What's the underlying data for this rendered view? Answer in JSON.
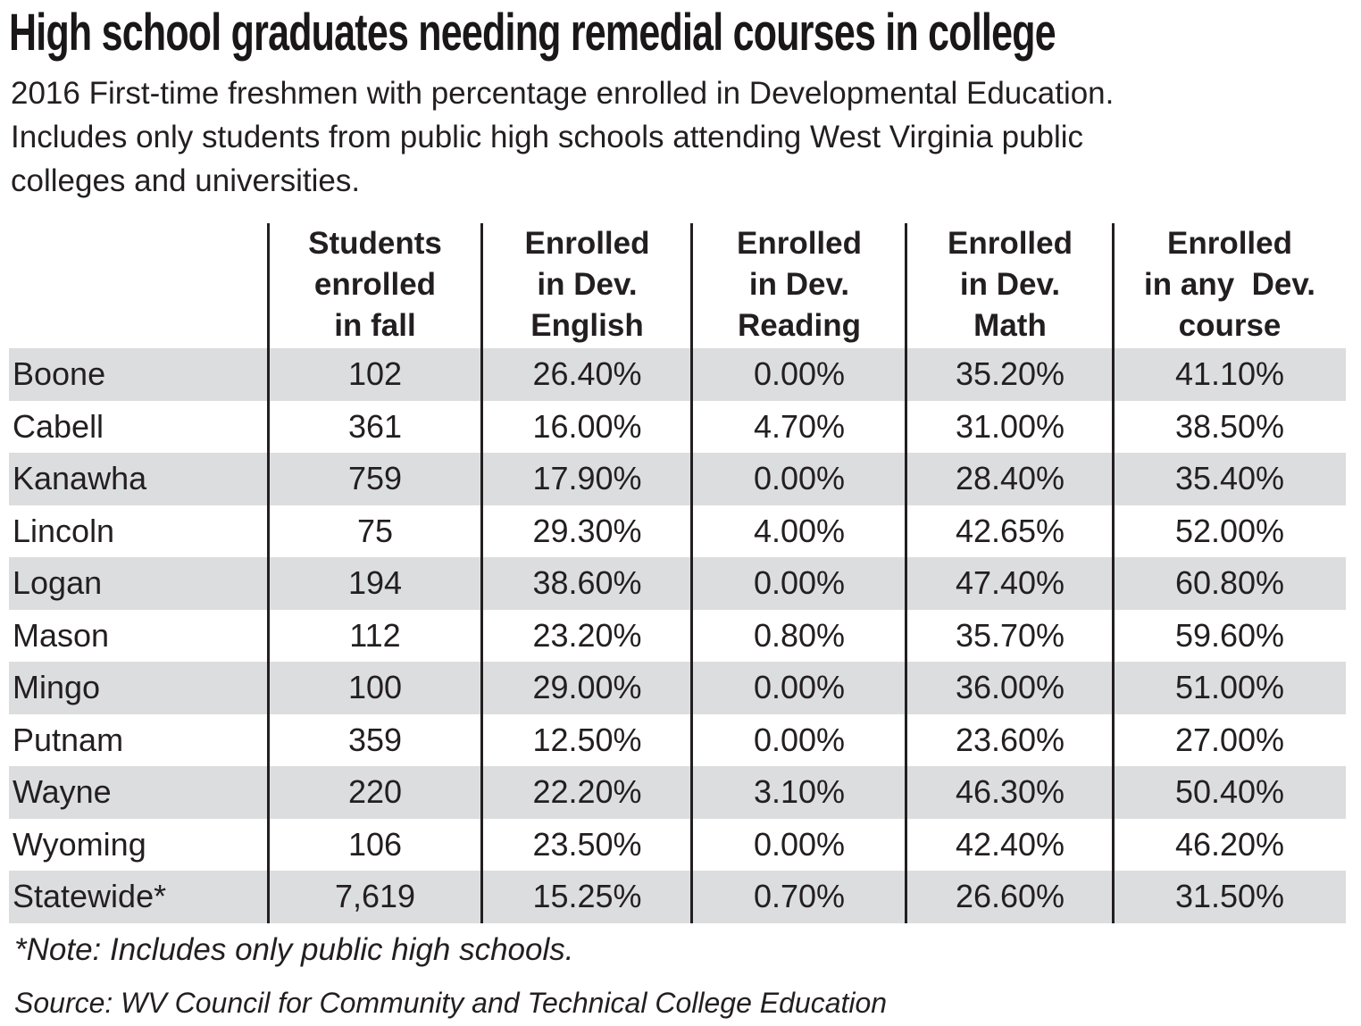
{
  "title": "High school graduates needing remedial courses in college",
  "subtitle": {
    "lines": [
      "2016 First-time freshmen with percentage enrolled in Developmental Education.",
      "Includes only students from public high schools attending West Virginia public",
      "colleges and universities."
    ]
  },
  "table": {
    "headers": [
      {
        "lines": [
          "",
          "",
          ""
        ]
      },
      {
        "lines": [
          "Students",
          "enrolled",
          "in fall"
        ]
      },
      {
        "lines": [
          "Enrolled",
          "in Dev.",
          "English"
        ]
      },
      {
        "lines": [
          "Enrolled",
          "in Dev.",
          "Reading"
        ]
      },
      {
        "lines": [
          "Enrolled",
          "in Dev.",
          "Math"
        ]
      },
      {
        "lines": [
          "Enrolled",
          "in any  Dev.",
          "course"
        ]
      }
    ],
    "rows": [
      {
        "county": "Boone",
        "students": "102",
        "english": "26.40%",
        "reading": "0.00%",
        "math": "35.20%",
        "any": "41.10%"
      },
      {
        "county": "Cabell",
        "students": "361",
        "english": "16.00%",
        "reading": "4.70%",
        "math": "31.00%",
        "any": "38.50%"
      },
      {
        "county": "Kanawha",
        "students": "759",
        "english": "17.90%",
        "reading": "0.00%",
        "math": "28.40%",
        "any": "35.40%"
      },
      {
        "county": "Lincoln",
        "students": "75",
        "english": "29.30%",
        "reading": "4.00%",
        "math": "42.65%",
        "any": "52.00%"
      },
      {
        "county": "Logan",
        "students": "194",
        "english": "38.60%",
        "reading": "0.00%",
        "math": "47.40%",
        "any": "60.80%"
      },
      {
        "county": "Mason",
        "students": "112",
        "english": "23.20%",
        "reading": "0.80%",
        "math": "35.70%",
        "any": "59.60%"
      },
      {
        "county": "Mingo",
        "students": "100",
        "english": "29.00%",
        "reading": "0.00%",
        "math": "36.00%",
        "any": "51.00%"
      },
      {
        "county": "Putnam",
        "students": "359",
        "english": "12.50%",
        "reading": "0.00%",
        "math": "23.60%",
        "any": "27.00%"
      },
      {
        "county": "Wayne",
        "students": "220",
        "english": "22.20%",
        "reading": "3.10%",
        "math": "46.30%",
        "any": "50.40%"
      },
      {
        "county": "Wyoming",
        "students": "106",
        "english": "23.50%",
        "reading": "0.00%",
        "math": "42.40%",
        "any": "46.20%"
      },
      {
        "county": "Statewide*",
        "students": "7,619",
        "english": "15.25%",
        "reading": "0.70%",
        "math": "26.60%",
        "any": "31.50%"
      }
    ]
  },
  "note": "*Note: Includes only public high schools.",
  "source": "Source: WV Council for Community and Technical College Education",
  "colors": {
    "text": "#231f20",
    "row_shade": "#dcdddf",
    "background": "#ffffff"
  }
}
